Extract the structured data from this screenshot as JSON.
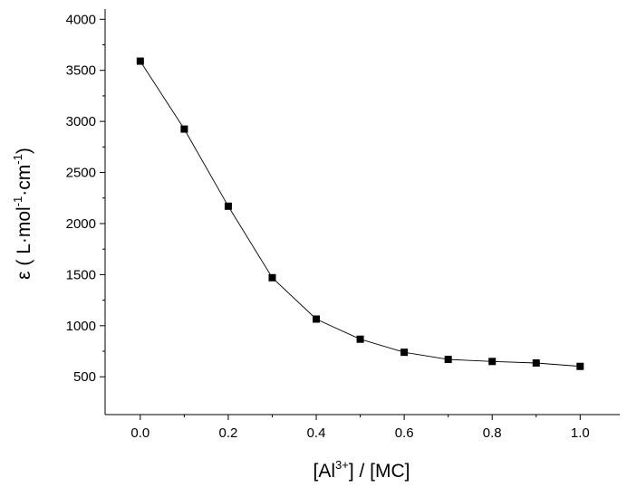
{
  "chart_data": {
    "type": "line",
    "title": "",
    "markers": "square",
    "x": [
      0.0,
      0.1,
      0.2,
      0.3,
      0.4,
      0.5,
      0.6,
      0.7,
      0.8,
      0.9,
      1.0
    ],
    "series": [
      {
        "values": [
          3590,
          2925,
          2170,
          1470,
          1065,
          868,
          740,
          670,
          650,
          635,
          602
        ]
      }
    ],
    "xlabel": {
      "pre": "[Al",
      "sup": "3+",
      "post": "] / [MC]"
    },
    "ylabel": {
      "t1": "ε ( L·mol",
      "s1": "-1",
      "t2": "·cm",
      "s2": "-1",
      "t3": ")"
    },
    "xlim": [
      -0.08,
      1.09
    ],
    "ylim": [
      130,
      4100
    ],
    "xticks": [
      "0.0",
      "0.2",
      "0.4",
      "0.6",
      "0.8",
      "1.0"
    ],
    "xtick_values": [
      0.0,
      0.2,
      0.4,
      0.6,
      0.8,
      1.0
    ],
    "xminor": [
      0.1,
      0.3,
      0.5,
      0.7,
      0.9
    ],
    "yticks": [
      "500",
      "1000",
      "1500",
      "2000",
      "2500",
      "3000",
      "3500",
      "4000"
    ],
    "ytick_values": [
      500,
      1000,
      1500,
      2000,
      2500,
      3000,
      3500,
      4000
    ],
    "yminor": [
      750,
      1250,
      1750,
      2250,
      2750,
      3250,
      3750
    ],
    "grid": false,
    "legend": "none",
    "colors": {
      "line": "#000000",
      "marker": "#000000",
      "axis": "#000000"
    }
  }
}
